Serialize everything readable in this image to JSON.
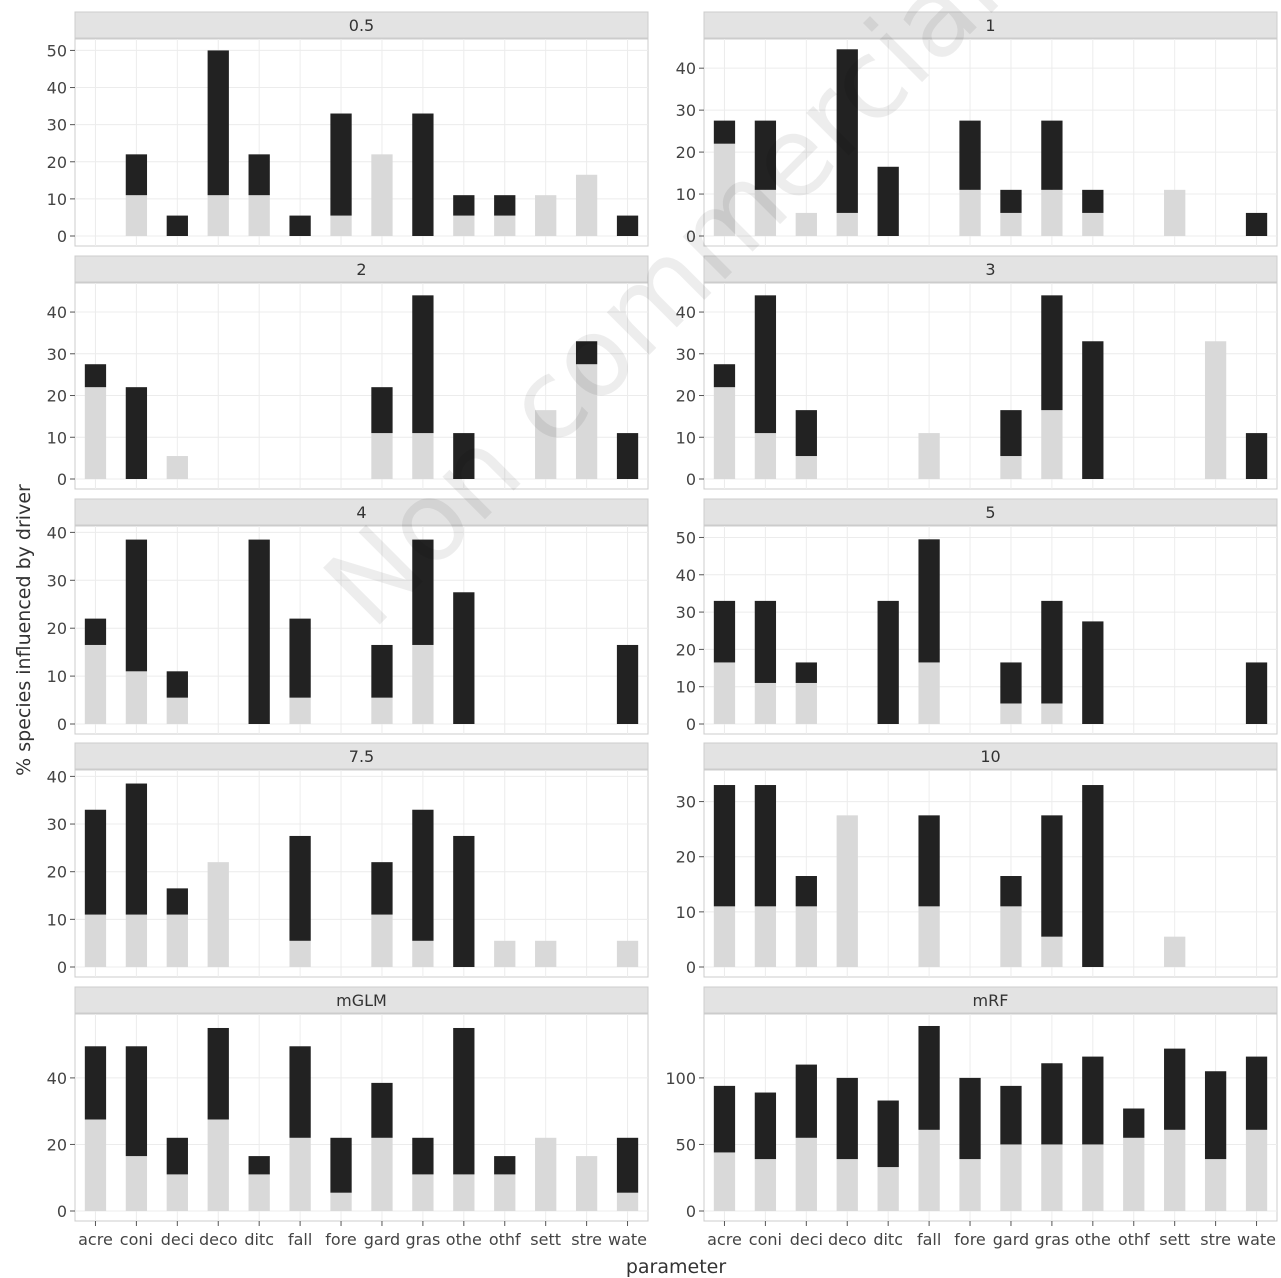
{
  "figure": {
    "xlabel": "parameter",
    "ylabel": "% species influenced by driver",
    "watermark": "Non commercial use only",
    "colors": {
      "lower": "#d9d9d9",
      "upper": "#222222",
      "strip": "#e3e3e3",
      "grid": "#ececec"
    }
  },
  "chart_data": [
    {
      "type": "bar",
      "title": "0.5",
      "categories": [
        "acre",
        "coni",
        "deci",
        "deco",
        "ditc",
        "fall",
        "fore",
        "gard",
        "gras",
        "othe",
        "othf",
        "sett",
        "stre",
        "wate"
      ],
      "series": [
        {
          "values": [
            0,
            11,
            0,
            11,
            11,
            0,
            5.5,
            22,
            0,
            5.5,
            5.5,
            11,
            16.5,
            0
          ]
        },
        {
          "values": [
            0,
            11,
            5.5,
            39,
            11,
            5.5,
            27.5,
            0,
            33,
            5.5,
            5.5,
            0,
            0,
            5.5
          ]
        }
      ],
      "ylim": [
        0,
        52
      ],
      "yticks": [
        0,
        10,
        20,
        30,
        40,
        50
      ]
    },
    {
      "type": "bar",
      "title": "1",
      "categories": [
        "acre",
        "coni",
        "deci",
        "deco",
        "ditc",
        "fall",
        "fore",
        "gard",
        "gras",
        "othe",
        "othf",
        "sett",
        "stre",
        "wate"
      ],
      "series": [
        {
          "values": [
            22,
            11,
            5.5,
            5.5,
            0,
            0,
            11,
            5.5,
            11,
            5.5,
            0,
            11,
            0,
            0
          ]
        },
        {
          "values": [
            5.5,
            16.5,
            0,
            39,
            16.5,
            0,
            16.5,
            5.5,
            16.5,
            5.5,
            0,
            0,
            0,
            5.5
          ]
        }
      ],
      "ylim": [
        0,
        46
      ],
      "yticks": [
        0,
        10,
        20,
        30,
        40
      ]
    },
    {
      "type": "bar",
      "title": "2",
      "categories": [
        "acre",
        "coni",
        "deci",
        "deco",
        "ditc",
        "fall",
        "fore",
        "gard",
        "gras",
        "othe",
        "othf",
        "sett",
        "stre",
        "wate"
      ],
      "series": [
        {
          "values": [
            22,
            0,
            5.5,
            0,
            0,
            0,
            0,
            11,
            11,
            0,
            0,
            16.5,
            27.5,
            0
          ]
        },
        {
          "values": [
            5.5,
            22,
            0,
            0,
            0,
            0,
            0,
            11,
            33,
            11,
            0,
            0,
            5.5,
            11
          ]
        }
      ],
      "ylim": [
        0,
        46
      ],
      "yticks": [
        0,
        10,
        20,
        30,
        40
      ]
    },
    {
      "type": "bar",
      "title": "3",
      "categories": [
        "acre",
        "coni",
        "deci",
        "deco",
        "ditc",
        "fall",
        "fore",
        "gard",
        "gras",
        "othe",
        "othf",
        "sett",
        "stre",
        "wate"
      ],
      "series": [
        {
          "values": [
            22,
            11,
            5.5,
            0,
            0,
            11,
            0,
            5.5,
            16.5,
            0,
            0,
            0,
            33,
            0
          ]
        },
        {
          "values": [
            5.5,
            33,
            11,
            0,
            0,
            0,
            0,
            11,
            27.5,
            33,
            0,
            0,
            0,
            11
          ]
        }
      ],
      "ylim": [
        0,
        46
      ],
      "yticks": [
        0,
        10,
        20,
        30,
        40
      ]
    },
    {
      "type": "bar",
      "title": "4",
      "categories": [
        "acre",
        "coni",
        "deci",
        "deco",
        "ditc",
        "fall",
        "fore",
        "gard",
        "gras",
        "othe",
        "othf",
        "sett",
        "stre",
        "wate"
      ],
      "series": [
        {
          "values": [
            16.5,
            11,
            5.5,
            0,
            0,
            5.5,
            0,
            5.5,
            16.5,
            0,
            0,
            0,
            0,
            0
          ]
        },
        {
          "values": [
            5.5,
            27.5,
            5.5,
            0,
            38.5,
            16.5,
            0,
            11,
            22,
            27.5,
            0,
            0,
            0,
            16.5
          ]
        }
      ],
      "ylim": [
        0,
        40.5
      ],
      "yticks": [
        0,
        10,
        20,
        30,
        40
      ]
    },
    {
      "type": "bar",
      "title": "5",
      "categories": [
        "acre",
        "coni",
        "deci",
        "deco",
        "ditc",
        "fall",
        "fore",
        "gard",
        "gras",
        "othe",
        "othf",
        "sett",
        "stre",
        "wate"
      ],
      "series": [
        {
          "values": [
            16.5,
            11,
            11,
            0,
            0,
            16.5,
            0,
            5.5,
            5.5,
            0,
            0,
            0,
            0,
            0
          ]
        },
        {
          "values": [
            16.5,
            22,
            5.5,
            0,
            33,
            33,
            0,
            11,
            27.5,
            27.5,
            0,
            0,
            0,
            16.5
          ]
        }
      ],
      "ylim": [
        0,
        52
      ],
      "yticks": [
        0,
        10,
        20,
        30,
        40,
        50
      ]
    },
    {
      "type": "bar",
      "title": "7.5",
      "categories": [
        "acre",
        "coni",
        "deci",
        "deco",
        "ditc",
        "fall",
        "fore",
        "gard",
        "gras",
        "othe",
        "othf",
        "sett",
        "stre",
        "wate"
      ],
      "series": [
        {
          "values": [
            11,
            11,
            11,
            22,
            0,
            5.5,
            0,
            11,
            5.5,
            0,
            5.5,
            5.5,
            0,
            5.5
          ]
        },
        {
          "values": [
            22,
            27.5,
            5.5,
            0,
            0,
            22,
            0,
            11,
            27.5,
            27.5,
            0,
            0,
            0,
            0
          ]
        }
      ],
      "ylim": [
        0,
        40.5
      ],
      "yticks": [
        0,
        10,
        20,
        30,
        40
      ]
    },
    {
      "type": "bar",
      "title": "10",
      "categories": [
        "acre",
        "coni",
        "deci",
        "deco",
        "ditc",
        "fall",
        "fore",
        "gard",
        "gras",
        "othe",
        "othf",
        "sett",
        "stre",
        "wate"
      ],
      "series": [
        {
          "values": [
            11,
            11,
            11,
            27.5,
            0,
            11,
            0,
            11,
            5.5,
            0,
            0,
            5.5,
            0,
            0
          ]
        },
        {
          "values": [
            22,
            22,
            5.5,
            0,
            0,
            16.5,
            0,
            5.5,
            22,
            33,
            0,
            0,
            0,
            0
          ]
        }
      ],
      "ylim": [
        0,
        35
      ],
      "yticks": [
        0,
        10,
        20,
        30
      ]
    },
    {
      "type": "bar",
      "title": "mGLM",
      "categories": [
        "acre",
        "coni",
        "deci",
        "deco",
        "ditc",
        "fall",
        "fore",
        "gard",
        "gras",
        "othe",
        "othf",
        "sett",
        "stre",
        "wate"
      ],
      "series": [
        {
          "values": [
            27.5,
            16.5,
            11,
            27.5,
            11,
            22,
            5.5,
            22,
            11,
            11,
            11,
            22,
            16.5,
            5.5
          ]
        },
        {
          "values": [
            22,
            33,
            11,
            27.5,
            5.5,
            27.5,
            16.5,
            16.5,
            11,
            44,
            5.5,
            0,
            0,
            16.5
          ]
        }
      ],
      "ylim": [
        0,
        58
      ],
      "yticks": [
        0,
        20,
        40
      ]
    },
    {
      "type": "bar",
      "title": "mRF",
      "categories": [
        "acre",
        "coni",
        "deci",
        "deco",
        "ditc",
        "fall",
        "fore",
        "gard",
        "gras",
        "othe",
        "othf",
        "sett",
        "stre",
        "wate"
      ],
      "series": [
        {
          "values": [
            44,
            39,
            55,
            39,
            33,
            61,
            39,
            50,
            50,
            50,
            55,
            61,
            39,
            61
          ]
        },
        {
          "values": [
            50,
            50,
            55,
            61,
            50,
            78,
            61,
            44,
            61,
            66,
            22,
            61,
            66,
            55
          ]
        }
      ],
      "ylim": [
        0,
        145
      ],
      "yticks": [
        0,
        50,
        100
      ]
    }
  ]
}
